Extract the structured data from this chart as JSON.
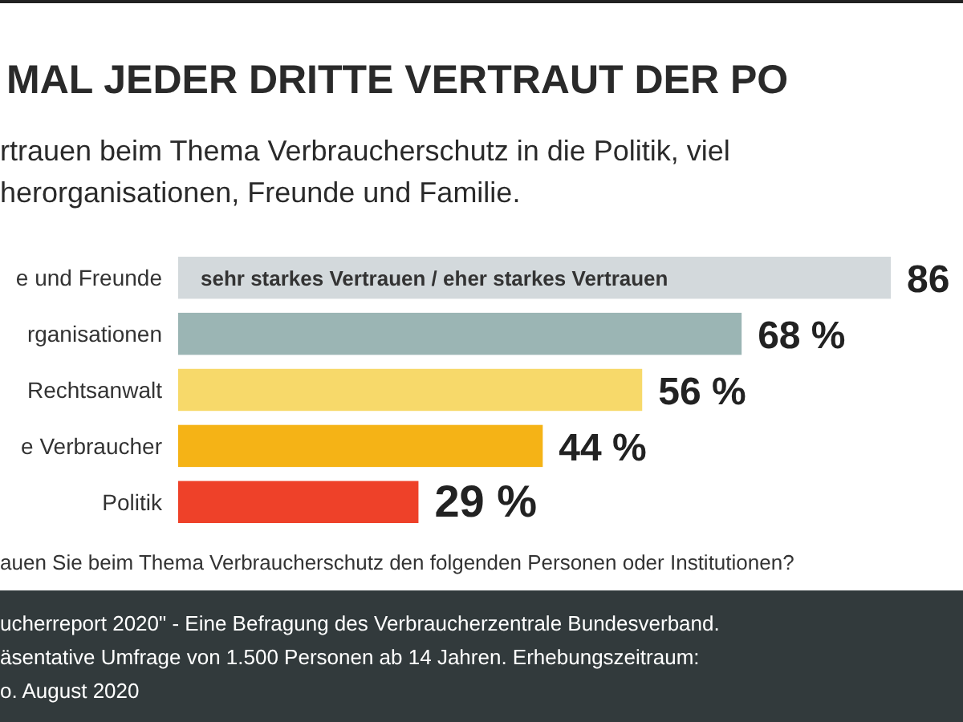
{
  "chart_data": {
    "type": "bar",
    "orientation": "horizontal",
    "title": "MAL JEDER DRITTE VERTRAUT DER PO",
    "subtitle": "rtrauen beim Thema Verbraucherschutz in die Politik, viel\nherorganisationen, Freunde und Familie.",
    "categories": [
      "e und Freunde",
      "rganisationen",
      "Rechtsanwalt",
      "e Verbraucher",
      "Politik"
    ],
    "values": [
      86,
      68,
      56,
      44,
      29
    ],
    "colors": [
      "#d3d9dc",
      "#9bb5b4",
      "#f7d96a",
      "#f5b316",
      "#ee4129"
    ],
    "value_labels": [
      "86",
      "68 %",
      "56 %",
      "44 %",
      "29 %"
    ],
    "annotations": [
      "sehr starkes Vertrauen / eher starkes Vertrauen",
      "auen Sie beim Thema Verbraucherschutz den folgenden Personen oder Institutionen?",
      "ucherreport 2020\" - Eine Befragung des Verbraucherzentrale Bundesverband.",
      "äsentative Umfrage von 1.500 Personen ab 14 Jahren. Erhebungszeitraum:",
      "o. August 2020"
    ]
  }
}
